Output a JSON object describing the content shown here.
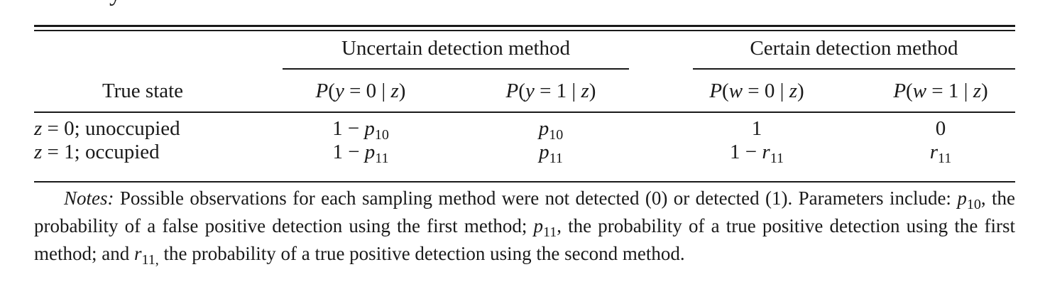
{
  "cutoff_glyph": "y",
  "table": {
    "group_headers": [
      "Uncertain detection method",
      "Certain detection method"
    ],
    "row_header": "True state",
    "columns": [
      {
        "func": "P",
        "var": "y",
        "val": "0",
        "cond": "z"
      },
      {
        "func": "P",
        "var": "y",
        "val": "1",
        "cond": "z"
      },
      {
        "func": "P",
        "var": "w",
        "val": "0",
        "cond": "z"
      },
      {
        "func": "P",
        "var": "w",
        "val": "1",
        "cond": "z"
      }
    ],
    "rows": [
      {
        "state_var": "z",
        "state_val": "= 0; unoccupied",
        "cells": [
          {
            "pre": "1 − ",
            "sym": "p",
            "sub": "10"
          },
          {
            "pre": "",
            "sym": "p",
            "sub": "10"
          },
          {
            "pre": "1",
            "sym": "",
            "sub": ""
          },
          {
            "pre": "0",
            "sym": "",
            "sub": ""
          }
        ]
      },
      {
        "state_var": "z",
        "state_val": "= 1; occupied",
        "cells": [
          {
            "pre": "1 − ",
            "sym": "p",
            "sub": "11"
          },
          {
            "pre": "",
            "sym": "p",
            "sub": "11"
          },
          {
            "pre": "1 − ",
            "sym": "r",
            "sub": "11"
          },
          {
            "pre": "",
            "sym": "r",
            "sub": "11"
          }
        ]
      }
    ]
  },
  "notes": {
    "label": "Notes:",
    "t1": " Possible observations for each sampling method were not detected (0) or detected (1). Parameters include: ",
    "s1": "p",
    "s1_sub": "10",
    "t2": ", the probability of a false positive detection using the first method; ",
    "s2": "p",
    "s2_sub": "11",
    "t3": ", the probability of a true positive detection using the first method; and ",
    "s3": "r",
    "s3_sub": "11,",
    "t4": " the probability of a true positive detection using the second method."
  }
}
